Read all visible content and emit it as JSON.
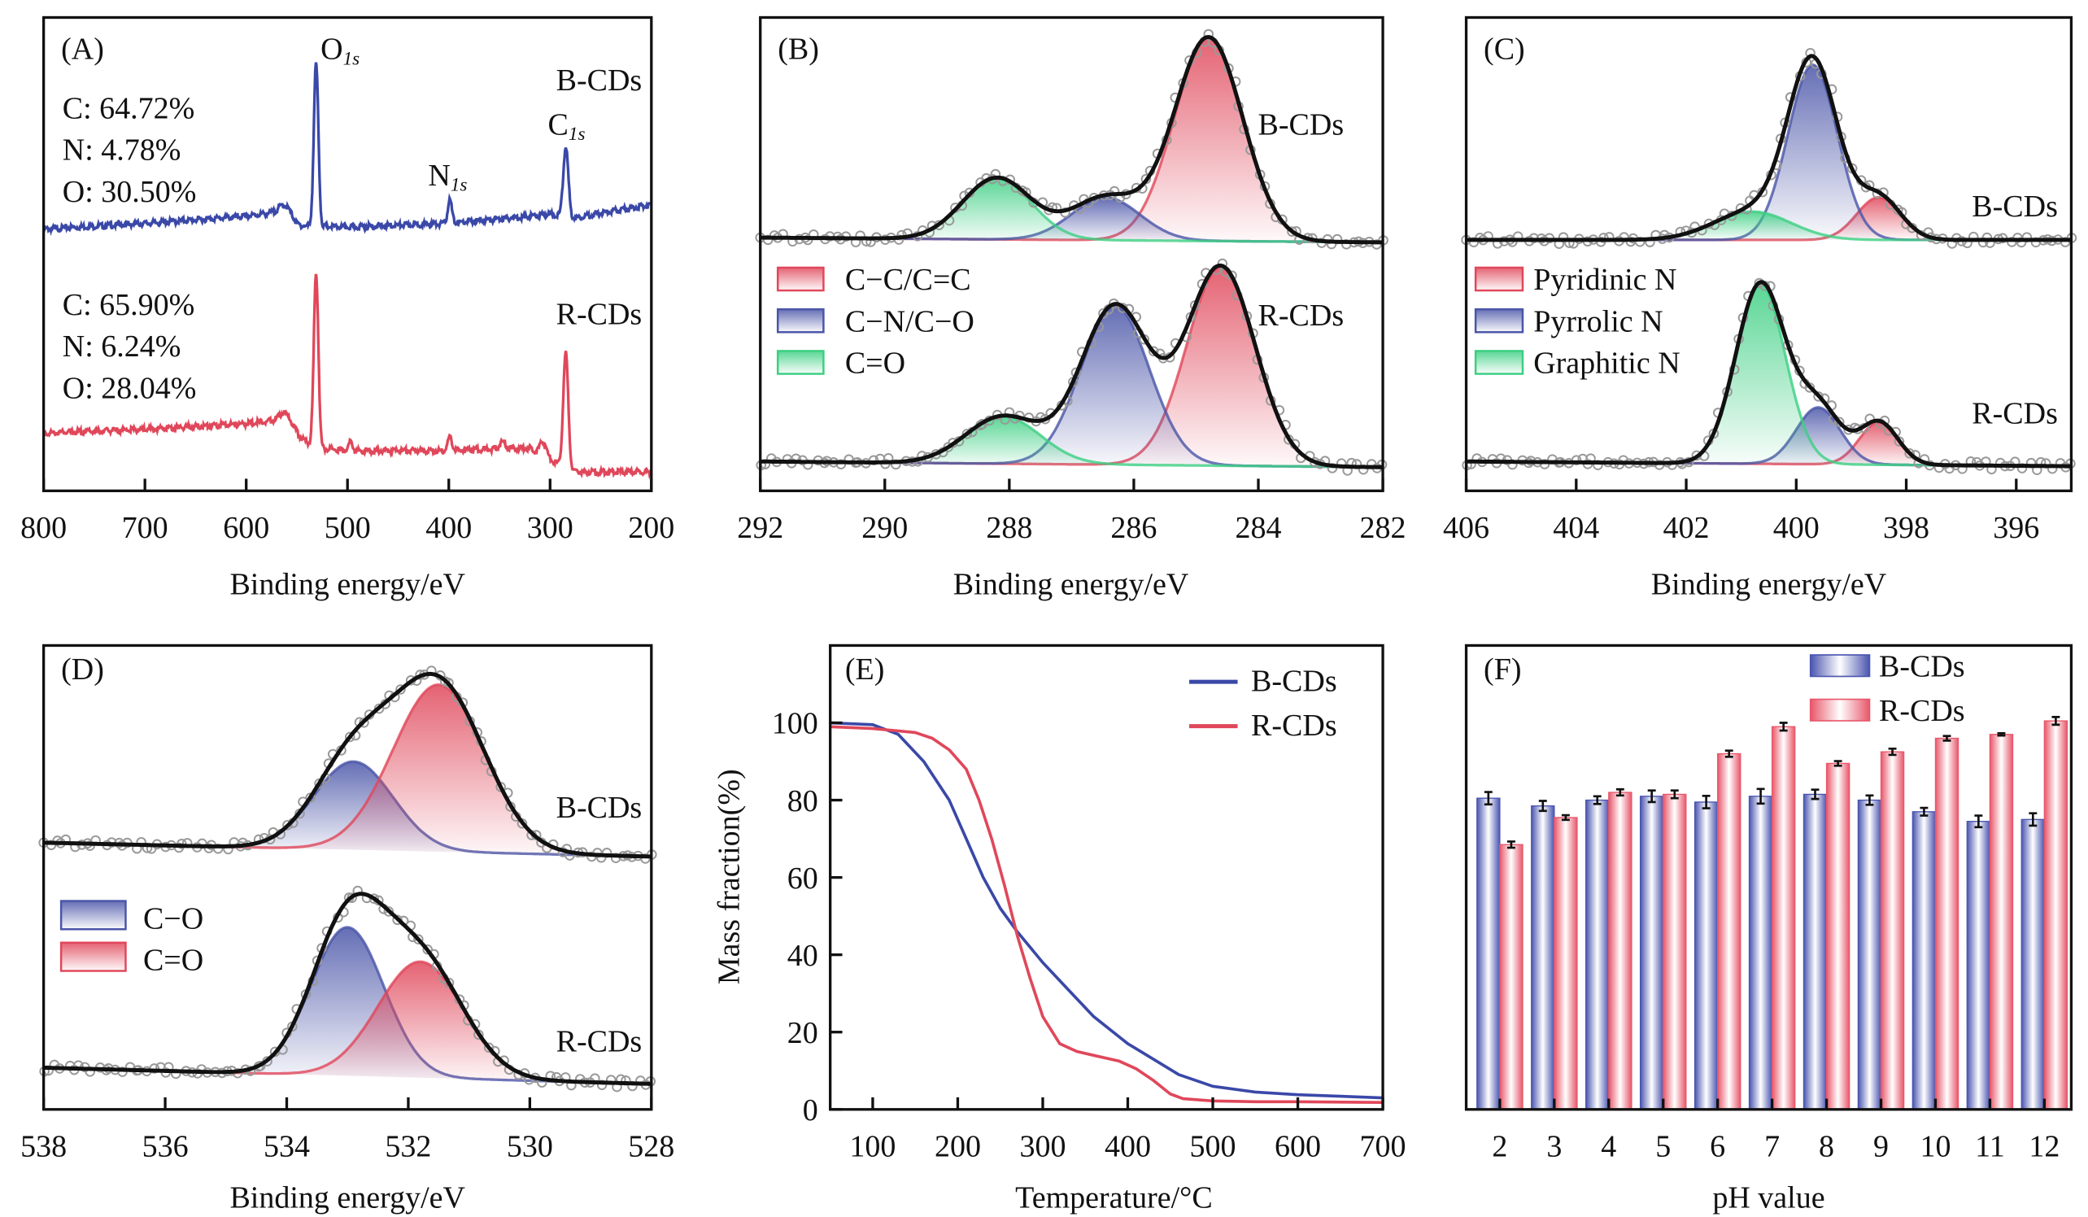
{
  "chart_data": [
    {
      "panel": "(A)",
      "type": "line",
      "xlabel": "Binding energy/eV",
      "xlim": [
        800,
        200
      ],
      "xticks": [
        "800",
        "700",
        "600",
        "500",
        "400",
        "300",
        "200"
      ],
      "ylim": [
        0,
        1
      ],
      "peak_labels": [
        {
          "main": "O",
          "sub": "1s"
        },
        {
          "main": "N",
          "sub": "1s"
        },
        {
          "main": "C",
          "sub": "1s"
        }
      ],
      "series": [
        {
          "name": "B-CDs",
          "color": "#3a48a8",
          "composition": [
            "C: 64.72%",
            "N: 4.78%",
            "O: 30.50%"
          ],
          "baseline": [
            [
              800,
              0.553
            ],
            [
              700,
              0.565
            ],
            [
              600,
              0.58
            ],
            [
              565,
              0.59
            ],
            [
              550,
              0.56
            ],
            [
              500,
              0.557
            ],
            [
              400,
              0.565
            ],
            [
              320,
              0.58
            ],
            [
              300,
              0.585
            ],
            [
              280,
              0.575
            ],
            [
              200,
              0.605
            ]
          ],
          "peaks": [
            [
              560,
              0.02,
              6
            ],
            [
              531,
              0.345,
              2.2
            ],
            [
              399,
              0.05,
              2
            ],
            [
              284.5,
              0.15,
              2.5
            ]
          ]
        },
        {
          "name": "R-CDs",
          "color": "#e0475a",
          "composition": [
            "C: 65.90%",
            "N: 6.24%",
            "O: 28.04%"
          ],
          "baseline": [
            [
              800,
              0.122
            ],
            [
              700,
              0.13
            ],
            [
              600,
              0.142
            ],
            [
              565,
              0.15
            ],
            [
              545,
              0.11
            ],
            [
              530,
              0.09
            ],
            [
              500,
              0.085
            ],
            [
              400,
              0.085
            ],
            [
              320,
              0.09
            ],
            [
              290,
              0.055
            ],
            [
              280,
              0.04
            ],
            [
              200,
              0.04
            ]
          ],
          "peaks": [
            [
              560,
              0.02,
              6
            ],
            [
              531,
              0.37,
              2.2
            ],
            [
              497,
              0.018,
              2
            ],
            [
              399,
              0.03,
              2
            ],
            [
              347,
              0.015,
              3
            ],
            [
              307,
              0.03,
              3
            ],
            [
              284.5,
              0.245,
              2.5
            ]
          ]
        }
      ]
    },
    {
      "panel": "(B)",
      "type": "area",
      "xlabel": "Binding energy/eV",
      "xlim": [
        292,
        282
      ],
      "xticks": [
        "292",
        "290",
        "288",
        "286",
        "284",
        "282"
      ],
      "ylim": [
        0,
        1
      ],
      "legend": [
        "C−C/C=C",
        "C−N/C−O",
        "C=O"
      ],
      "component_colors": [
        "#e0475a",
        "#4a55a8",
        "#3ccf82"
      ],
      "series": [
        {
          "name": "B-CDs",
          "baseline": [
            [
              292,
              0.535
            ],
            [
              282,
              0.525
            ]
          ],
          "components": [
            [
              284.8,
              0.43,
              0.55
            ],
            [
              286.45,
              0.09,
              0.55
            ],
            [
              288.2,
              0.13,
              0.55
            ]
          ]
        },
        {
          "name": "R-CDs",
          "baseline": [
            [
              292,
              0.062
            ],
            [
              282,
              0.05
            ]
          ],
          "components": [
            [
              284.6,
              0.42,
              0.55
            ],
            [
              286.3,
              0.335,
              0.55
            ],
            [
              288.1,
              0.1,
              0.6
            ]
          ]
        }
      ]
    },
    {
      "panel": "(C)",
      "type": "area",
      "xlabel": "Binding energy/eV",
      "xlim": [
        406,
        395
      ],
      "xticks": [
        "406",
        "404",
        "402",
        "400",
        "398",
        "396"
      ],
      "ylim": [
        0,
        1
      ],
      "legend": [
        "Pyridinic N",
        "Pyrrolic N",
        "Graphitic N"
      ],
      "component_colors": [
        "#e0475a",
        "#4a55a8",
        "#3ccf82"
      ],
      "series": [
        {
          "name": "B-CDs",
          "baseline": [
            [
              406,
              0.53
            ],
            [
              395,
              0.53
            ]
          ],
          "components": [
            [
              398.5,
              0.09,
              0.4
            ],
            [
              399.7,
              0.37,
              0.45
            ],
            [
              400.8,
              0.06,
              0.7
            ]
          ]
        },
        {
          "name": "R-CDs",
          "baseline": [
            [
              406,
              0.062
            ],
            [
              395,
              0.052
            ]
          ],
          "components": [
            [
              398.5,
              0.09,
              0.35
            ],
            [
              399.6,
              0.12,
              0.4
            ],
            [
              400.65,
              0.38,
              0.45
            ]
          ]
        }
      ]
    },
    {
      "panel": "(D)",
      "type": "area",
      "xlabel": "Binding energy/eV",
      "xlim": [
        538,
        528
      ],
      "xticks": [
        "538",
        "536",
        "534",
        "532",
        "530",
        "528"
      ],
      "ylim": [
        0,
        1
      ],
      "legend": [
        "C−O",
        "C=O"
      ],
      "component_colors": [
        "#4a55a8",
        "#e0475a"
      ],
      "series": [
        {
          "name": "B-CDs",
          "baseline": [
            [
              538,
              0.575
            ],
            [
              528,
              0.545
            ]
          ],
          "components": [
            [
              532.9,
              0.19,
              0.65
            ],
            [
              531.5,
              0.36,
              0.75
            ]
          ]
        },
        {
          "name": "R-CDs",
          "baseline": [
            [
              538,
              0.09
            ],
            [
              528,
              0.055
            ]
          ],
          "components": [
            [
              533.0,
              0.32,
              0.6
            ],
            [
              531.8,
              0.25,
              0.7
            ]
          ]
        }
      ]
    },
    {
      "panel": "(E)",
      "type": "line",
      "xlabel": "Temperature/°C",
      "ylabel": "Mass fraction(%)",
      "xlim": [
        50,
        700
      ],
      "ylim": [
        0,
        120
      ],
      "xticks": [
        100,
        200,
        300,
        400,
        500,
        600,
        700
      ],
      "yticks": [
        0,
        20,
        40,
        60,
        80,
        100
      ],
      "legend_position": "top-right",
      "series": [
        {
          "name": "B-CDs",
          "color": "#3a48a8",
          "x": [
            50,
            100,
            130,
            160,
            190,
            210,
            230,
            250,
            270,
            300,
            330,
            360,
            400,
            430,
            460,
            500,
            550,
            600,
            650,
            700
          ],
          "y": [
            100,
            99.5,
            97,
            90,
            80,
            70,
            60,
            52,
            46,
            38,
            31,
            24,
            17,
            13,
            9,
            6,
            4.5,
            3.8,
            3.4,
            3
          ]
        },
        {
          "name": "R-CDs",
          "color": "#e0475a",
          "x": [
            50,
            100,
            150,
            170,
            190,
            210,
            225,
            240,
            255,
            270,
            285,
            300,
            320,
            340,
            360,
            390,
            410,
            430,
            450,
            465,
            500,
            550,
            600,
            700
          ],
          "y": [
            99,
            98.5,
            97.5,
            96,
            93,
            88,
            80,
            70,
            58,
            45,
            34,
            24,
            17,
            15,
            14,
            12.5,
            10.5,
            7.5,
            4,
            2.8,
            2.2,
            2,
            2,
            1.8
          ]
        }
      ]
    },
    {
      "panel": "(F)",
      "type": "bar",
      "xlabel": "pH value",
      "ylim": [
        0,
        120
      ],
      "categories": [
        "2",
        "3",
        "4",
        "5",
        "6",
        "7",
        "8",
        "9",
        "10",
        "11",
        "12"
      ],
      "legend_position": "top-right",
      "series": [
        {
          "name": "B-CDs",
          "color": "#4a55b0",
          "values": [
            80.5,
            78.5,
            80,
            81,
            79.5,
            81,
            81.5,
            80,
            77,
            74.5,
            75
          ],
          "errors": [
            1.6,
            1.3,
            1.0,
            1.5,
            1.6,
            1.9,
            1.2,
            1.2,
            1.0,
            1.5,
            1.6
          ]
        },
        {
          "name": "R-CDs",
          "color": "#e8576a",
          "values": [
            68.5,
            75.5,
            82,
            81.5,
            92,
            99,
            89.5,
            92.5,
            96,
            97,
            100.5
          ],
          "errors": [
            0.8,
            0.6,
            0.8,
            1.0,
            0.8,
            1.0,
            0.6,
            0.8,
            0.6,
            0.3,
            1.0
          ]
        }
      ]
    }
  ]
}
